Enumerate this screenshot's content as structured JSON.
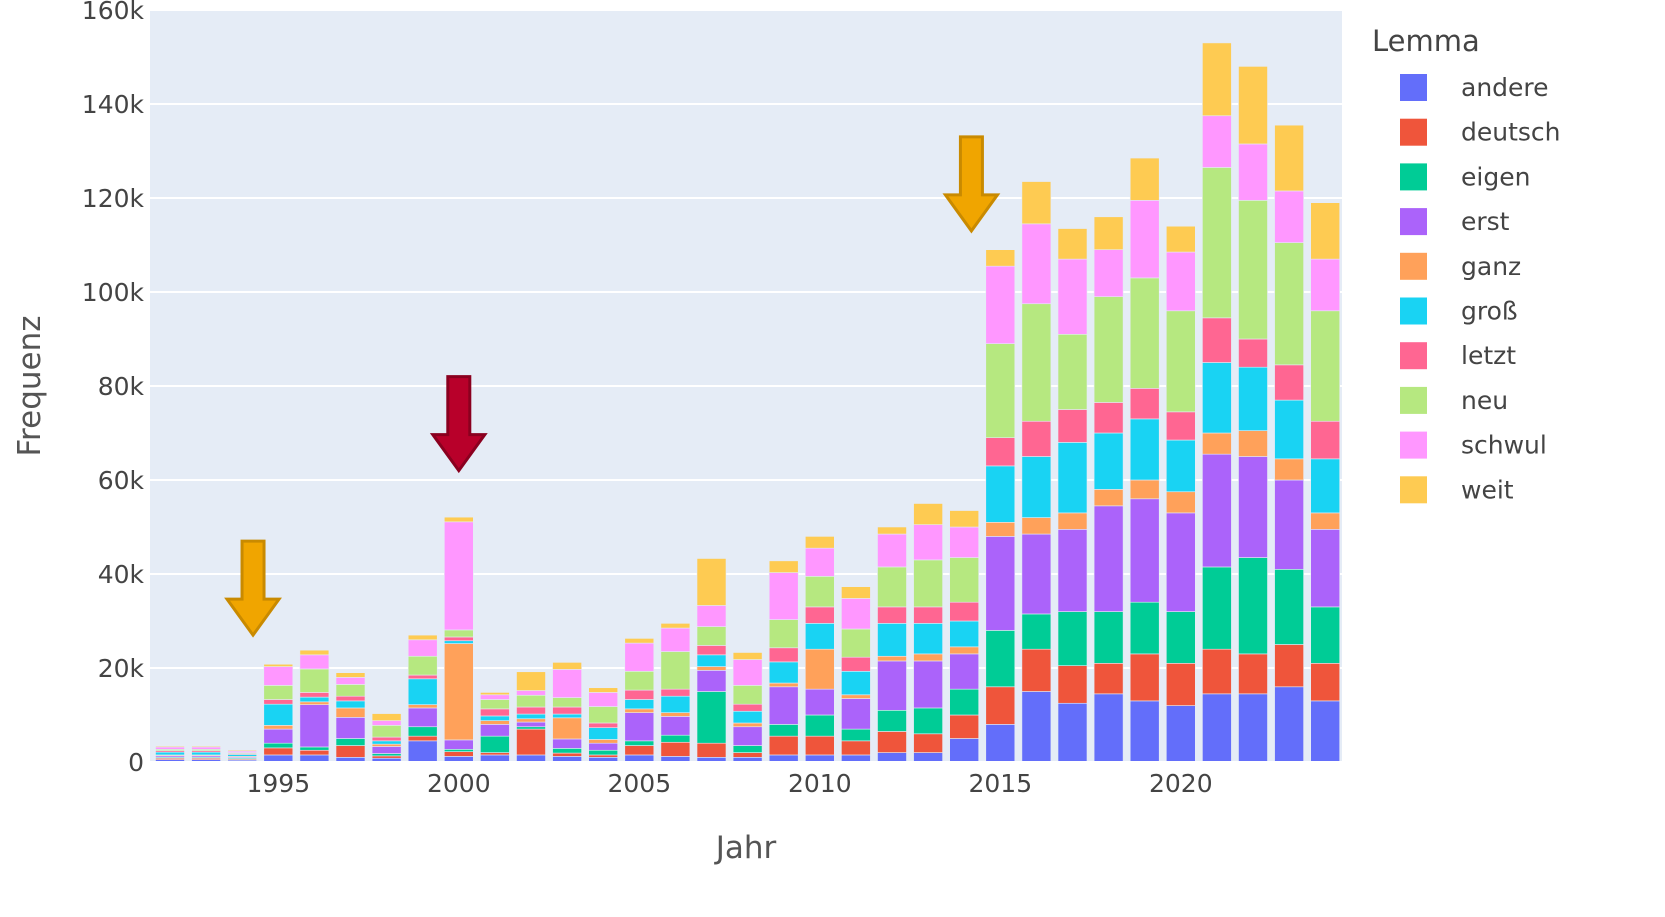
{
  "chart_data": {
    "type": "bar",
    "barmode": "stack",
    "xlabel": "Jahr",
    "ylabel": "Frequenz",
    "legend_title": "Lemma",
    "legend_position": "right",
    "grid": true,
    "ylim": [
      0,
      160000
    ],
    "y_ticks": [
      0,
      20000,
      40000,
      60000,
      80000,
      100000,
      120000,
      140000,
      160000
    ],
    "y_tick_labels": [
      "0",
      "20k",
      "40k",
      "60k",
      "80k",
      "100k",
      "120k",
      "140k",
      "160k"
    ],
    "x_ticks": [
      1995,
      2000,
      2005,
      2010,
      2015,
      2020
    ],
    "x_tick_labels": [
      "1995",
      "2000",
      "2005",
      "2010",
      "2015",
      "2020"
    ],
    "categories": [
      1992,
      1993,
      1994,
      1995,
      1996,
      1997,
      1998,
      1999,
      2000,
      2001,
      2002,
      2003,
      2004,
      2005,
      2006,
      2007,
      2008,
      2009,
      2010,
      2011,
      2012,
      2013,
      2014,
      2015,
      2016,
      2017,
      2018,
      2019,
      2020,
      2021,
      2022,
      2023,
      2024
    ],
    "series": [
      {
        "name": "andere",
        "color": "#636efa",
        "values": [
          500,
          500,
          400,
          1500,
          1500,
          1000,
          800,
          4500,
          1200,
          1500,
          1500,
          1200,
          1000,
          1500,
          1200,
          1000,
          1000,
          1500,
          1500,
          1500,
          2000,
          2000,
          5000,
          8000,
          15000,
          12500,
          14500,
          13000,
          12000,
          14500,
          14500,
          16000,
          13000
        ]
      },
      {
        "name": "deutsch",
        "color": "#ef553b",
        "values": [
          300,
          300,
          200,
          1500,
          1000,
          2500,
          500,
          1000,
          1000,
          500,
          5500,
          700,
          500,
          2000,
          3000,
          3000,
          1000,
          4000,
          4000,
          3000,
          4500,
          4000,
          5000,
          8000,
          9000,
          8000,
          6500,
          10000,
          9000,
          9500,
          8500,
          9000,
          8000
        ]
      },
      {
        "name": "eigen",
        "color": "#00cc96",
        "values": [
          200,
          200,
          200,
          1000,
          700,
          1500,
          500,
          2000,
          500,
          3500,
          500,
          1000,
          1000,
          1000,
          1500,
          11000,
          1500,
          2500,
          4500,
          2500,
          4500,
          5500,
          5500,
          12000,
          7500,
          11500,
          11000,
          11000,
          11000,
          17500,
          20500,
          16000,
          12000
        ]
      },
      {
        "name": "erst",
        "color": "#ab63fa",
        "values": [
          300,
          300,
          200,
          3000,
          9000,
          4500,
          1500,
          4000,
          2000,
          2500,
          1000,
          2000,
          1500,
          6000,
          4000,
          4500,
          4000,
          8000,
          5500,
          6500,
          10500,
          10000,
          7500,
          20000,
          17000,
          17500,
          22500,
          22000,
          21000,
          24000,
          21500,
          19000,
          16500
        ]
      },
      {
        "name": "ganz",
        "color": "#ffa15a",
        "values": [
          200,
          200,
          200,
          800,
          600,
          2000,
          500,
          700,
          20500,
          800,
          700,
          4500,
          800,
          800,
          800,
          800,
          800,
          800,
          8500,
          800,
          1000,
          1500,
          1500,
          3000,
          3500,
          3500,
          3500,
          4000,
          4500,
          4500,
          5500,
          4500,
          3500
        ]
      },
      {
        "name": "groß",
        "color": "#19d3f3",
        "values": [
          600,
          600,
          400,
          4500,
          1000,
          1500,
          700,
          5500,
          600,
          1000,
          1000,
          800,
          2500,
          2000,
          3500,
          2500,
          2500,
          4500,
          5500,
          5000,
          7000,
          6500,
          5500,
          12000,
          13000,
          15000,
          12000,
          13000,
          11000,
          15000,
          13500,
          12500,
          11500
        ]
      },
      {
        "name": "letzt",
        "color": "#ff6692",
        "values": [
          300,
          300,
          200,
          1000,
          1000,
          1000,
          800,
          800,
          800,
          1500,
          1500,
          1500,
          1000,
          2000,
          1500,
          2000,
          1500,
          3000,
          3500,
          3000,
          3500,
          3500,
          4000,
          6000,
          7500,
          7000,
          6500,
          6500,
          6000,
          9500,
          6000,
          7500,
          8000
        ]
      },
      {
        "name": "neu",
        "color": "#b6e880",
        "values": [
          300,
          300,
          200,
          3000,
          5000,
          2500,
          2500,
          4000,
          1500,
          2000,
          2500,
          2000,
          3500,
          4000,
          8000,
          4000,
          4000,
          6000,
          6500,
          6000,
          8500,
          10000,
          9500,
          20000,
          25000,
          16000,
          22500,
          23500,
          21500,
          32000,
          29500,
          26000,
          23500
        ]
      },
      {
        "name": "schwul",
        "color": "#ff97ff",
        "values": [
          500,
          500,
          300,
          4000,
          3000,
          1500,
          1000,
          3500,
          23000,
          1000,
          1000,
          6000,
          3000,
          6000,
          5000,
          4500,
          5500,
          10000,
          6000,
          6500,
          7000,
          7500,
          6500,
          16500,
          17000,
          16000,
          10000,
          16500,
          12500,
          11000,
          12000,
          11000,
          11000
        ]
      },
      {
        "name": "weit",
        "color": "#fecb52",
        "values": [
          200,
          200,
          200,
          500,
          1000,
          1000,
          1500,
          1000,
          1000,
          500,
          4000,
          1500,
          1000,
          1000,
          1000,
          10000,
          1500,
          2500,
          2500,
          2500,
          1500,
          4500,
          3500,
          3500,
          9000,
          6500,
          7000,
          9000,
          5500,
          15500,
          16500,
          14000,
          12000
        ]
      }
    ],
    "annotations": [
      {
        "type": "arrow",
        "color": "#f0a500",
        "edge": "#c98a00",
        "x": 1994.3,
        "y_top": 47000,
        "y_bottom": 27000
      },
      {
        "type": "arrow",
        "color": "#b8002a",
        "edge": "#8a001f",
        "x": 2000,
        "y_top": 82000,
        "y_bottom": 62000
      },
      {
        "type": "arrow",
        "color": "#f0a500",
        "edge": "#c98a00",
        "x": 2014.2,
        "y_top": 133000,
        "y_bottom": 113000
      }
    ]
  }
}
